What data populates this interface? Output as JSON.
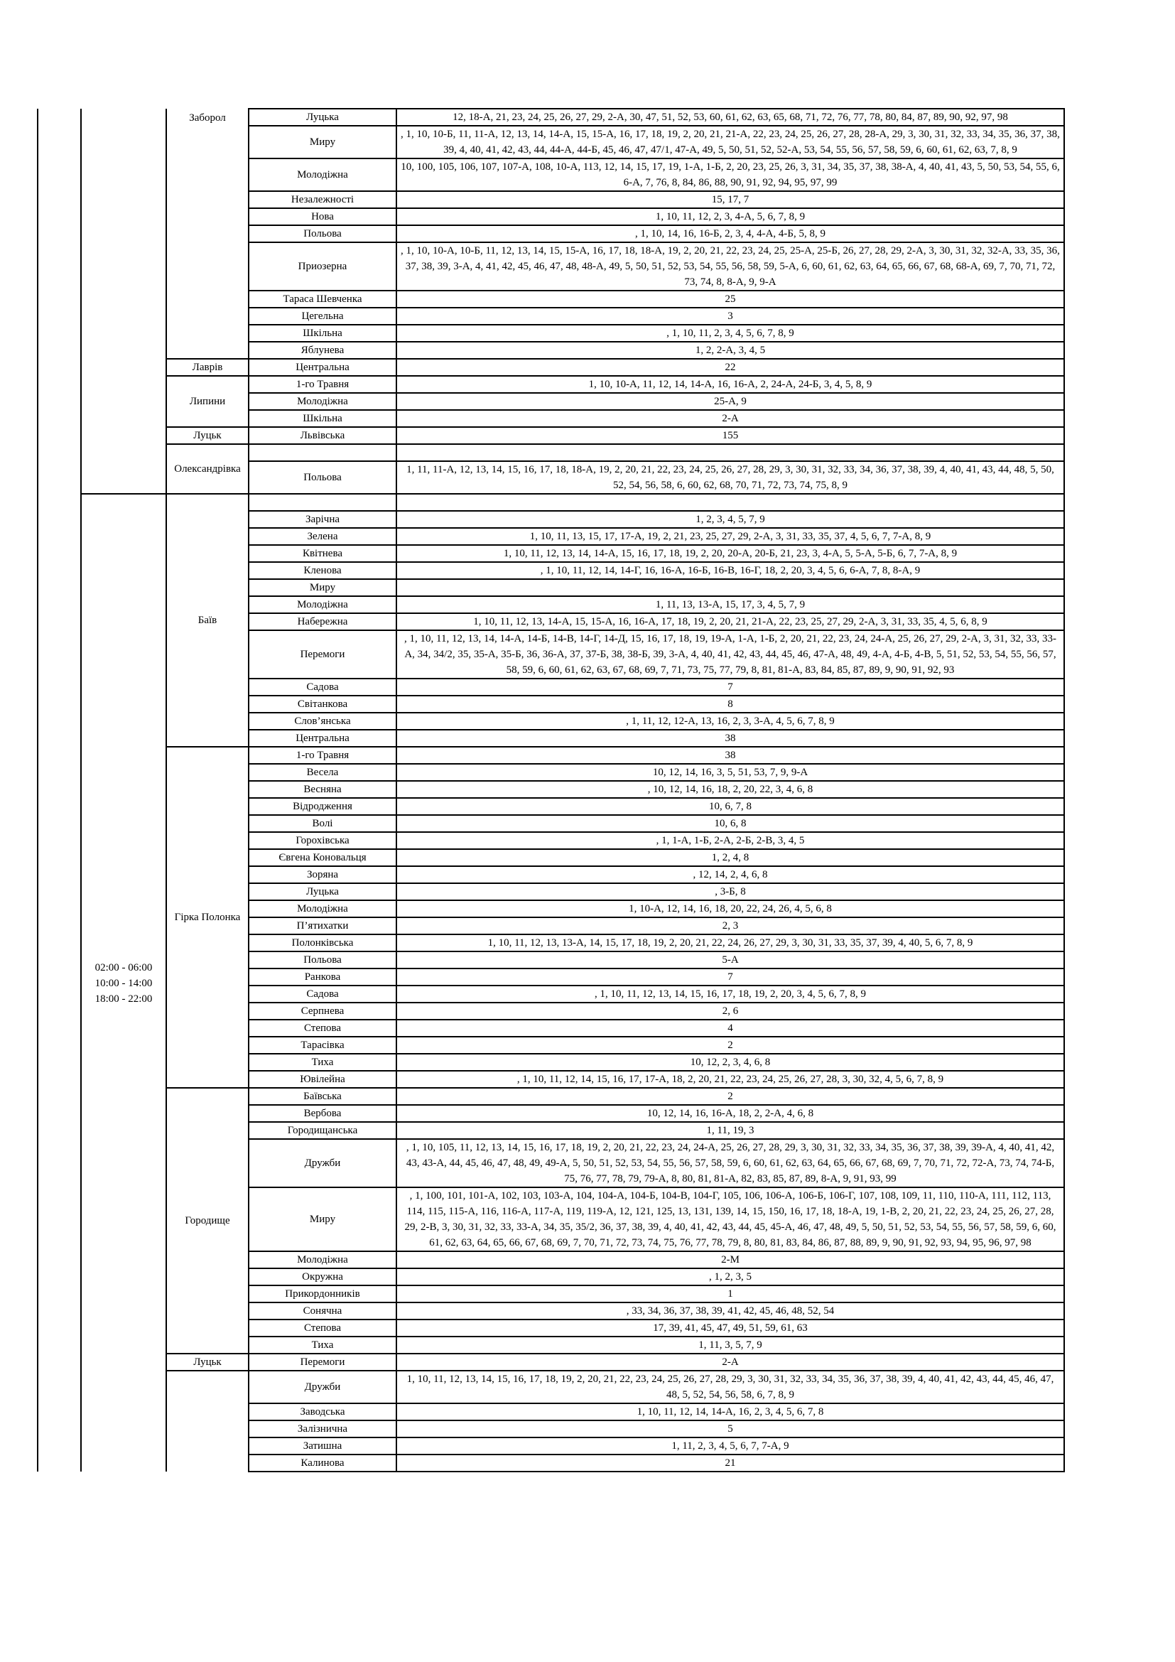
{
  "groups": [
    {
      "time": [],
      "villages": [
        {
          "name": "Заборол",
          "streets": [
            {
              "name": "Луцька",
              "houses": "12, 18-А, 21, 23, 24, 25, 26, 27, 29, 2-А, 30, 47, 51, 52, 53, 60, 61, 62, 63, 65, 68, 71, 72, 76, 77, 78, 80, 84, 87, 89, 90, 92, 97, 98"
            },
            {
              "name": "Миру",
              "houses": ", 1, 10, 10-Б, 11, 11-А, 12, 13, 14, 14-А, 15, 15-А, 16, 17, 18, 19, 2, 20, 21, 21-А, 22, 23, 24, 25, 26, 27, 28, 28-А, 29, 3, 30, 31, 32, 33, 34, 35, 36, 37, 38, 39, 4, 40, 41, 42, 43, 44, 44-А, 44-Б, 45, 46, 47, 47/1, 47-А, 49, 5, 50, 51, 52, 52-А, 53, 54, 55, 56, 57, 58, 59, 6, 60, 61, 62, 63, 7, 8, 9"
            },
            {
              "name": "Молодіжна",
              "houses": "10, 100, 105, 106, 107, 107-А, 108, 10-А, 113, 12, 14, 15, 17, 19, 1-А, 1-Б, 2, 20, 23, 25, 26, 3, 31, 34, 35, 37, 38, 38-А, 4, 40, 41, 43, 5, 50, 53, 54, 55, 6, 6-А, 7, 76, 8, 84, 86, 88, 90, 91, 92, 94, 95, 97, 99"
            },
            {
              "name": "Незалежності",
              "houses": "15, 17, 7"
            },
            {
              "name": "Нова",
              "houses": "1, 10, 11, 12, 2, 3, 4-А, 5, 6, 7, 8, 9"
            },
            {
              "name": "Польова",
              "houses": ", 1, 10, 14, 16, 16-Б, 2, 3, 4, 4-А, 4-Б, 5, 8, 9"
            },
            {
              "name": "Приозерна",
              "houses": ", 1, 10, 10-А, 10-Б, 11, 12, 13, 14, 15, 15-А, 16, 17, 18, 18-А, 19, 2, 20, 21, 22, 23, 24, 25, 25-А, 25-Б, 26, 27, 28, 29, 2-А, 3, 30, 31, 32, 32-А, 33, 35, 36, 37, 38, 39, 3-А, 4, 41, 42, 45, 46, 47, 48, 48-А, 49, 5, 50, 51, 52, 53, 54, 55, 56, 58, 59, 5-А, 6, 60, 61, 62, 63, 64, 65, 66, 67, 68, 68-А, 69, 7, 70, 71, 72, 73, 74, 8, 8-А, 9, 9-А"
            },
            {
              "name": "Тараса Шевченка",
              "houses": "25"
            },
            {
              "name": "Цегельна",
              "houses": "3"
            },
            {
              "name": "Шкільна",
              "houses": ", 1, 10, 11, 2, 3, 4, 5, 6, 7, 8, 9"
            },
            {
              "name": "Яблунева",
              "houses": "1, 2, 2-А, 3, 4, 5"
            }
          ]
        },
        {
          "name": "Лаврів",
          "streets": [
            {
              "name": "Центральна",
              "houses": "22"
            }
          ]
        },
        {
          "name": "Липини",
          "streets": [
            {
              "name": "1-го Травня",
              "houses": "1, 10, 10-А, 11, 12, 14, 14-А, 16, 16-А, 2, 24-А, 24-Б, 3, 4, 5, 8, 9"
            },
            {
              "name": "Молодіжна",
              "houses": "25-А, 9"
            },
            {
              "name": "Шкільна",
              "houses": "2-А"
            }
          ]
        },
        {
          "name": "Луцьк",
          "streets": [
            {
              "name": "Львівська",
              "houses": "155"
            }
          ]
        },
        {
          "name": "Олександрівка",
          "streets": [
            {
              "name": "",
              "houses": ""
            },
            {
              "name": "Польова",
              "houses": "1, 11, 11-А, 12, 13, 14, 15, 16, 17, 18, 18-А, 19, 2, 20, 21, 22, 23, 24, 25, 26, 27, 28, 29, 3, 30, 31, 32, 33, 34, 36, 37, 38, 39, 4, 40, 41, 43, 44, 48, 5, 50, 52, 54, 56, 58, 6, 60, 62, 68, 70, 71, 72, 73, 74, 75, 8, 9"
            }
          ]
        }
      ]
    },
    {
      "time": [
        "02:00 - 06:00",
        "10:00 - 14:00",
        "18:00 - 22:00"
      ],
      "villages": [
        {
          "name": "Баїв",
          "streets": [
            {
              "name": "",
              "houses": ""
            },
            {
              "name": "Зарічна",
              "houses": "1, 2, 3, 4, 5, 7, 9"
            },
            {
              "name": "Зелена",
              "houses": "1, 10, 11, 13, 15, 17, 17-А, 19, 2, 21, 23, 25, 27, 29, 2-А, 3, 31, 33, 35, 37, 4, 5, 6, 7, 7-А, 8, 9"
            },
            {
              "name": "Квітнева",
              "houses": "1, 10, 11, 12, 13, 14, 14-А, 15, 16, 17, 18, 19, 2, 20, 20-А, 20-Б, 21, 23, 3, 4-А, 5, 5-А, 5-Б, 6, 7, 7-А, 8, 9"
            },
            {
              "name": "Кленова",
              "houses": ", 1, 10, 11, 12, 14, 14-Г, 16, 16-А, 16-Б, 16-В, 16-Г, 18, 2, 20, 3, 4, 5, 6, 6-А, 7, 8, 8-А, 9"
            },
            {
              "name": "Миру",
              "houses": ""
            },
            {
              "name": "Молодіжна",
              "houses": "1, 11, 13, 13-А, 15, 17, 3, 4, 5, 7, 9"
            },
            {
              "name": "Набережна",
              "houses": "1, 10, 11, 12, 13, 14-А, 15, 15-А, 16, 16-А, 17, 18, 19, 2, 20, 21, 21-А, 22, 23, 25, 27, 29, 2-А, 3, 31, 33, 35, 4, 5, 6, 8, 9"
            },
            {
              "name": "Перемоги",
              "houses": ", 1, 10, 11, 12, 13, 14, 14-А, 14-Б, 14-В, 14-Г, 14-Д, 15, 16, 17, 18, 19, 19-А, 1-А, 1-Б, 2, 20, 21, 22, 23, 24, 24-А, 25, 26, 27, 29, 2-А, 3, 31, 32, 33, 33-А, 34, 34/2, 35, 35-А, 35-Б, 36, 36-А, 37, 37-Б, 38, 38-Б, 39, 3-А, 4, 40, 41, 42, 43, 44, 45, 46, 47-А, 48, 49, 4-А, 4-Б, 4-В, 5, 51, 52, 53, 54, 55, 56, 57, 58, 59, 6, 60, 61, 62, 63, 67, 68, 69, 7, 71, 73, 75, 77, 79, 8, 81, 81-А, 83, 84, 85, 87, 89, 9, 90, 91, 92, 93"
            },
            {
              "name": "Садова",
              "houses": "7"
            },
            {
              "name": "Світанкова",
              "houses": "8"
            },
            {
              "name": "Слов’янська",
              "houses": ", 1, 11, 12, 12-А, 13, 16, 2, 3, 3-А, 4, 5, 6, 7, 8, 9"
            },
            {
              "name": "Центральна",
              "houses": "38"
            }
          ]
        },
        {
          "name": "Гірка Полонка",
          "streets": [
            {
              "name": "1-го Травня",
              "houses": "38"
            },
            {
              "name": "Весела",
              "houses": "10, 12, 14, 16, 3, 5, 51, 53, 7, 9, 9-А"
            },
            {
              "name": "Весняна",
              "houses": ", 10, 12, 14, 16, 18, 2, 20, 22, 3, 4, 6, 8"
            },
            {
              "name": "Відродження",
              "houses": "10, 6, 7, 8"
            },
            {
              "name": "Волі",
              "houses": "10, 6, 8"
            },
            {
              "name": "Горохівська",
              "houses": ", 1, 1-А, 1-Б, 2-А, 2-Б, 2-В, 3, 4, 5"
            },
            {
              "name": "Євгена Коновальця",
              "houses": "1, 2, 4, 8"
            },
            {
              "name": "Зоряна",
              "houses": ", 12, 14, 2, 4, 6, 8"
            },
            {
              "name": "Луцька",
              "houses": ", 3-Б, 8"
            },
            {
              "name": "Молодіжна",
              "houses": "1, 10-А, 12, 14, 16, 18, 20, 22, 24, 26, 4, 5, 6, 8"
            },
            {
              "name": "П’ятихатки",
              "houses": "2, 3"
            },
            {
              "name": "Полонківська",
              "houses": "1, 10, 11, 12, 13, 13-А, 14, 15, 17, 18, 19, 2, 20, 21, 22, 24, 26, 27, 29, 3, 30, 31, 33, 35, 37, 39, 4, 40, 5, 6, 7, 8, 9"
            },
            {
              "name": "Польова",
              "houses": "5-А"
            },
            {
              "name": "Ранкова",
              "houses": "7"
            },
            {
              "name": "Садова",
              "houses": ", 1, 10, 11, 12, 13, 14, 15, 16, 17, 18, 19, 2, 20, 3, 4, 5, 6, 7, 8, 9"
            },
            {
              "name": "Серпнева",
              "houses": "2, 6"
            },
            {
              "name": "Степова",
              "houses": "4"
            },
            {
              "name": "Тарасівка",
              "houses": "2"
            },
            {
              "name": "Тиха",
              "houses": "10, 12, 2, 3, 4, 6, 8"
            },
            {
              "name": "Ювілейна",
              "houses": ", 1, 10, 11, 12, 14, 15, 16, 17, 17-А, 18, 2, 20, 21, 22, 23, 24, 25, 26, 27, 28, 3, 30, 32, 4, 5, 6, 7, 8, 9"
            }
          ]
        },
        {
          "name": "Городище",
          "streets": [
            {
              "name": "Баївська",
              "houses": "2"
            },
            {
              "name": "Вербова",
              "houses": "10, 12, 14, 16, 16-А, 18, 2, 2-А, 4, 6, 8"
            },
            {
              "name": "Городищанська",
              "houses": "1, 11, 19, 3"
            },
            {
              "name": "Дружби",
              "houses": ", 1, 10, 105, 11, 12, 13, 14, 15, 16, 17, 18, 19, 2, 20, 21, 22, 23, 24, 24-А, 25, 26, 27, 28, 29, 3, 30, 31, 32, 33, 34, 35, 36, 37, 38, 39, 39-А, 4, 40, 41, 42, 43, 43-А, 44, 45, 46, 47, 48, 49, 49-А, 5, 50, 51, 52, 53, 54, 55, 56, 57, 58, 59, 6, 60, 61, 62, 63, 64, 65, 66, 67, 68, 69, 7, 70, 71, 72, 72-А, 73, 74, 74-Б, 75, 76, 77, 78, 79, 79-А, 8, 80, 81, 81-А, 82, 83, 85, 87, 89, 8-А, 9, 91, 93, 99"
            },
            {
              "name": "Миру",
              "houses": ", 1, 100, 101, 101-А, 102, 103, 103-А, 104, 104-А, 104-Б, 104-В, 104-Г, 105, 106, 106-А, 106-Б, 106-Г, 107, 108, 109, 11, 110, 110-А, 111, 112, 113, 114, 115, 115-А, 116, 116-А, 117-А, 119, 119-А, 12, 121, 125, 13, 131, 139, 14, 15, 150, 16, 17, 18, 18-А, 19, 1-В, 2, 20, 21, 22, 23, 24, 25, 26, 27, 28, 29, 2-В, 3, 30, 31, 32, 33, 33-А, 34, 35, 35/2, 36, 37, 38, 39, 4, 40, 41, 42, 43, 44, 45, 45-А, 46, 47, 48, 49, 5, 50, 51, 52, 53, 54, 55, 56, 57, 58, 59, 6, 60, 61, 62, 63, 64, 65, 66, 67, 68, 69, 7, 70, 71, 72, 73, 74, 75, 76, 77, 78, 79, 8, 80, 81, 83, 84, 86, 87, 88, 89, 9, 90, 91, 92, 93, 94, 95, 96, 97, 98"
            },
            {
              "name": "Молодіжна",
              "houses": "2-М"
            },
            {
              "name": "Окружна",
              "houses": ", 1, 2, 3, 5"
            },
            {
              "name": "Прикордонників",
              "houses": "1"
            },
            {
              "name": "Сонячна",
              "houses": ", 33, 34, 36, 37, 38, 39, 41, 42, 45, 46, 48, 52, 54"
            },
            {
              "name": "Степова",
              "houses": "17, 39, 41, 45, 47, 49, 51, 59, 61, 63"
            },
            {
              "name": "Тиха",
              "houses": "1, 11, 3, 5, 7, 9"
            }
          ]
        },
        {
          "name": "Луцьк",
          "streets": [
            {
              "name": "Перемоги",
              "houses": "2-А"
            }
          ]
        },
        {
          "name": "",
          "streets": [
            {
              "name": "Дружби",
              "houses": "1, 10, 11, 12, 13, 14, 15, 16, 17, 18, 19, 2, 20, 21, 22, 23, 24, 25, 26, 27, 28, 29, 3, 30, 31, 32, 33, 34, 35, 36, 37, 38, 39, 4, 40, 41, 42, 43, 44, 45, 46, 47, 48, 5, 52, 54, 56, 58, 6, 7, 8, 9"
            },
            {
              "name": "Заводська",
              "houses": "1, 10, 11, 12, 14, 14-А, 16, 2, 3, 4, 5, 6, 7, 8"
            },
            {
              "name": "Залізнична",
              "houses": "5"
            },
            {
              "name": "Затишна",
              "houses": "1, 11, 2, 3, 4, 5, 6, 7, 7-А, 9"
            },
            {
              "name": "Калинова",
              "houses": "21"
            }
          ]
        }
      ]
    }
  ]
}
